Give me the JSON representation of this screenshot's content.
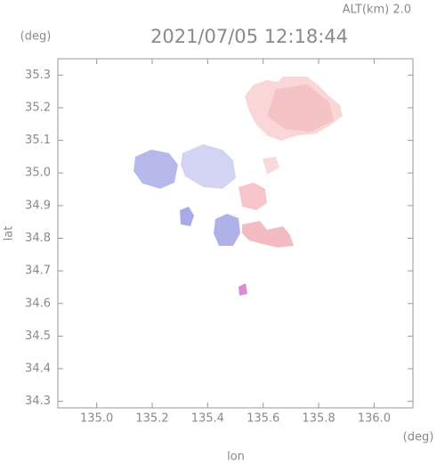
{
  "chart_data": {
    "type": "map",
    "title": "2021/07/05 12:18:44",
    "subtitle": "ALT(km) 2.0",
    "y_unit": "(deg)",
    "x_unit": "(deg)",
    "x_label": "lon",
    "y_label": "lat",
    "xlim": [
      134.86,
      136.14
    ],
    "ylim": [
      34.28,
      35.35
    ],
    "xticks": [
      {
        "value": 135,
        "label": "135.0"
      },
      135.2,
      135.4,
      135.6,
      135.8,
      {
        "value": 136,
        "label": "136.0"
      }
    ],
    "yticks": [
      34.3,
      34.4,
      34.5,
      34.6,
      34.7,
      34.8,
      34.9,
      {
        "value": 35,
        "label": "35.0"
      },
      35.1,
      35.2,
      35.3
    ]
  }
}
